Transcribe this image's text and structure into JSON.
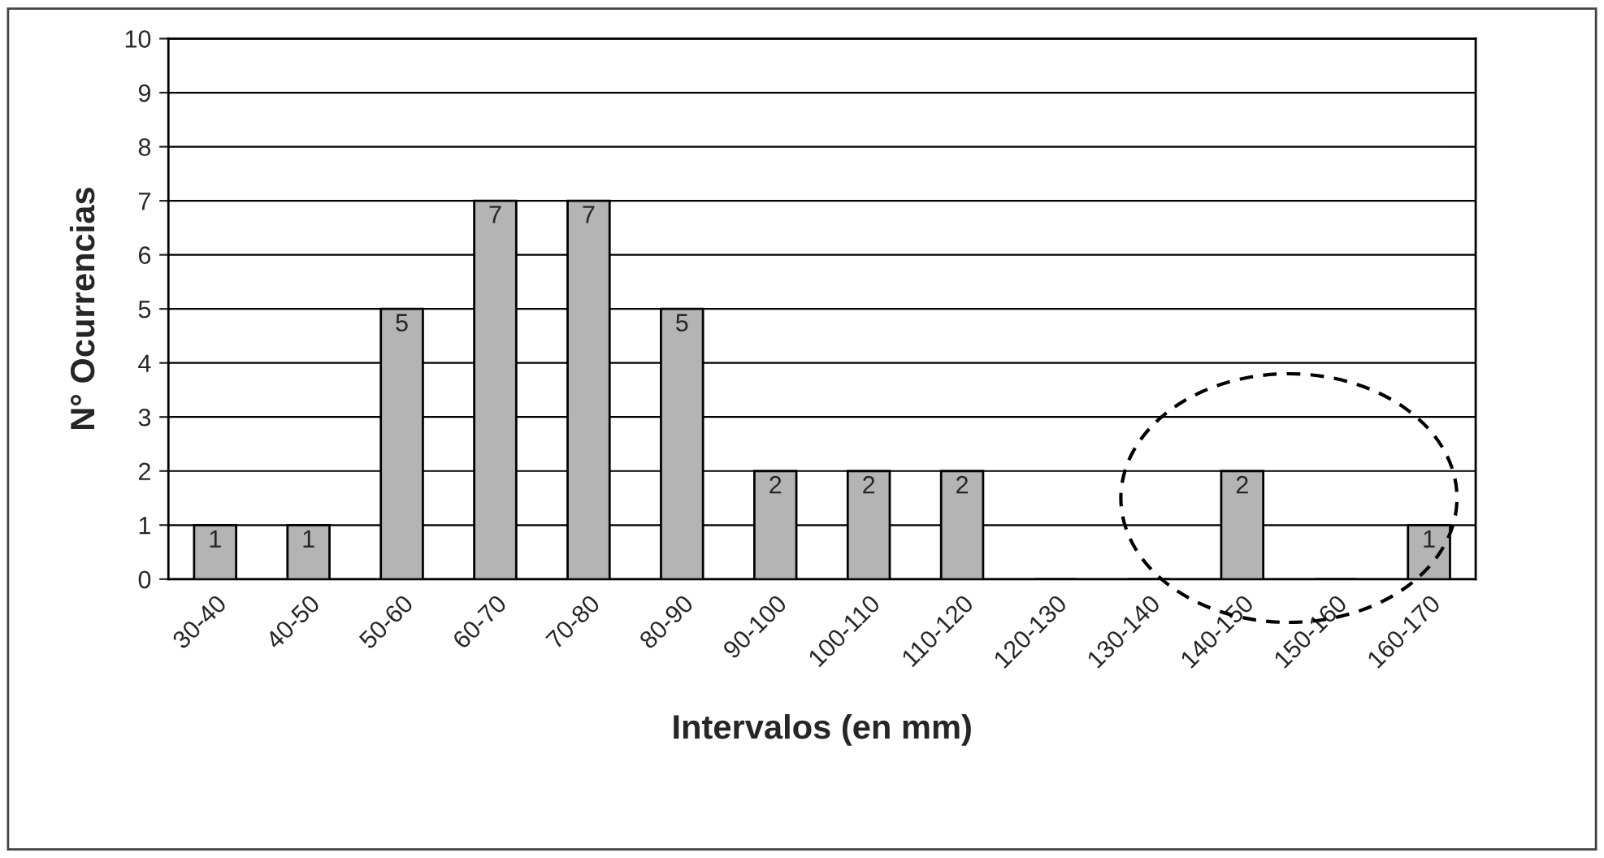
{
  "chart_data": {
    "type": "bar",
    "xlabel": "Intervalos (en mm)",
    "ylabel": "N° Ocurrencias",
    "categories": [
      "30-40",
      "40-50",
      "50-60",
      "60-70",
      "70-80",
      "80-90",
      "90-100",
      "100-110",
      "110-120",
      "120-130",
      "130-140",
      "140-150",
      "150-160",
      "160-170"
    ],
    "values": [
      1,
      1,
      5,
      7,
      7,
      5,
      2,
      2,
      2,
      0,
      0,
      2,
      0,
      1
    ],
    "value_labels": [
      "1",
      "1",
      "5",
      "7",
      "7",
      "5",
      "2",
      "2",
      "2",
      null,
      null,
      "2",
      null,
      "1"
    ],
    "color": "#b4b4b4",
    "ylim": [
      0,
      10
    ],
    "yticks": [
      0,
      1,
      2,
      3,
      4,
      5,
      6,
      7,
      8,
      9,
      10
    ],
    "grid": "y",
    "legend": false
  }
}
